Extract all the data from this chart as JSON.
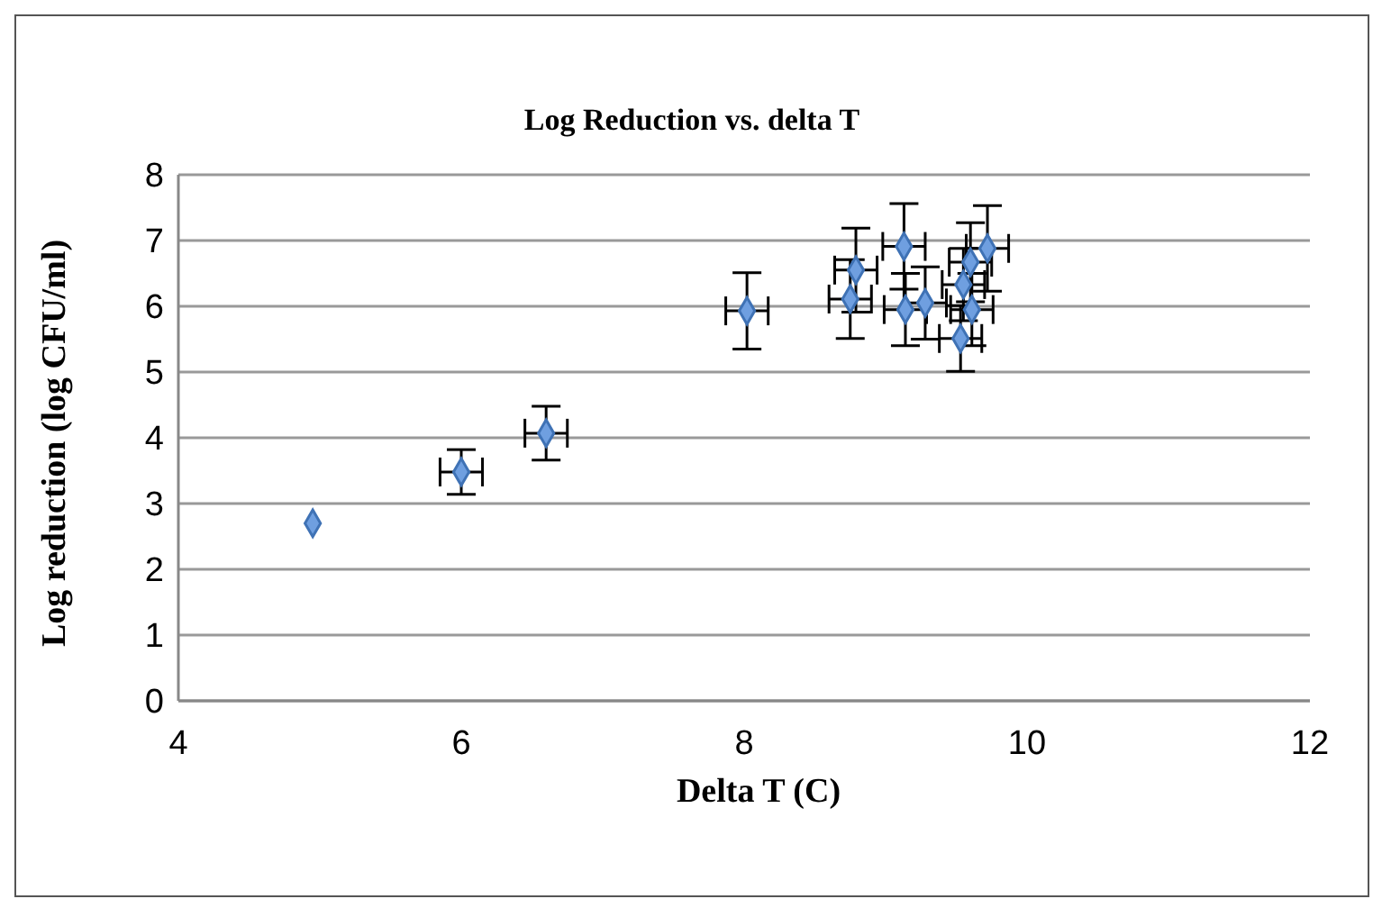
{
  "chart_data": {
    "type": "scatter",
    "title": "Log Reduction vs. delta T",
    "xlabel": "Delta T (C)",
    "ylabel": "Log reduction (log CFU/ml)",
    "x": [
      4.95,
      6.0,
      6.6,
      8.02,
      8.75,
      8.79,
      9.13,
      9.14,
      9.28,
      9.53,
      9.55,
      9.61,
      9.6,
      9.72
    ],
    "series": [
      {
        "color": "#6f9fe0",
        "values": [
          2.7,
          3.48,
          4.07,
          5.93,
          6.11,
          6.55,
          6.91,
          5.95,
          6.05,
          5.51,
          6.33,
          5.95,
          6.67,
          6.88
        ],
        "errors": [
          null,
          0.34,
          0.41,
          0.58,
          0.6,
          0.64,
          0.65,
          0.55,
          0.55,
          0.5,
          0.55,
          0.55,
          0.6,
          0.65
        ],
        "xerrors": [
          null,
          0.15,
          0.15,
          0.15,
          0.15,
          0.15,
          0.15,
          0.15,
          0.15,
          0.15,
          0.15,
          0.15,
          0.15,
          0.15
        ]
      }
    ],
    "xlim": [
      4,
      12
    ],
    "xticks": [
      4,
      6,
      8,
      10,
      12
    ],
    "ylim": [
      0,
      8
    ],
    "yticks": [
      0,
      1,
      2,
      3,
      4,
      5,
      6,
      7,
      8
    ],
    "grid": "y",
    "legend": false,
    "marker": "diamond"
  }
}
